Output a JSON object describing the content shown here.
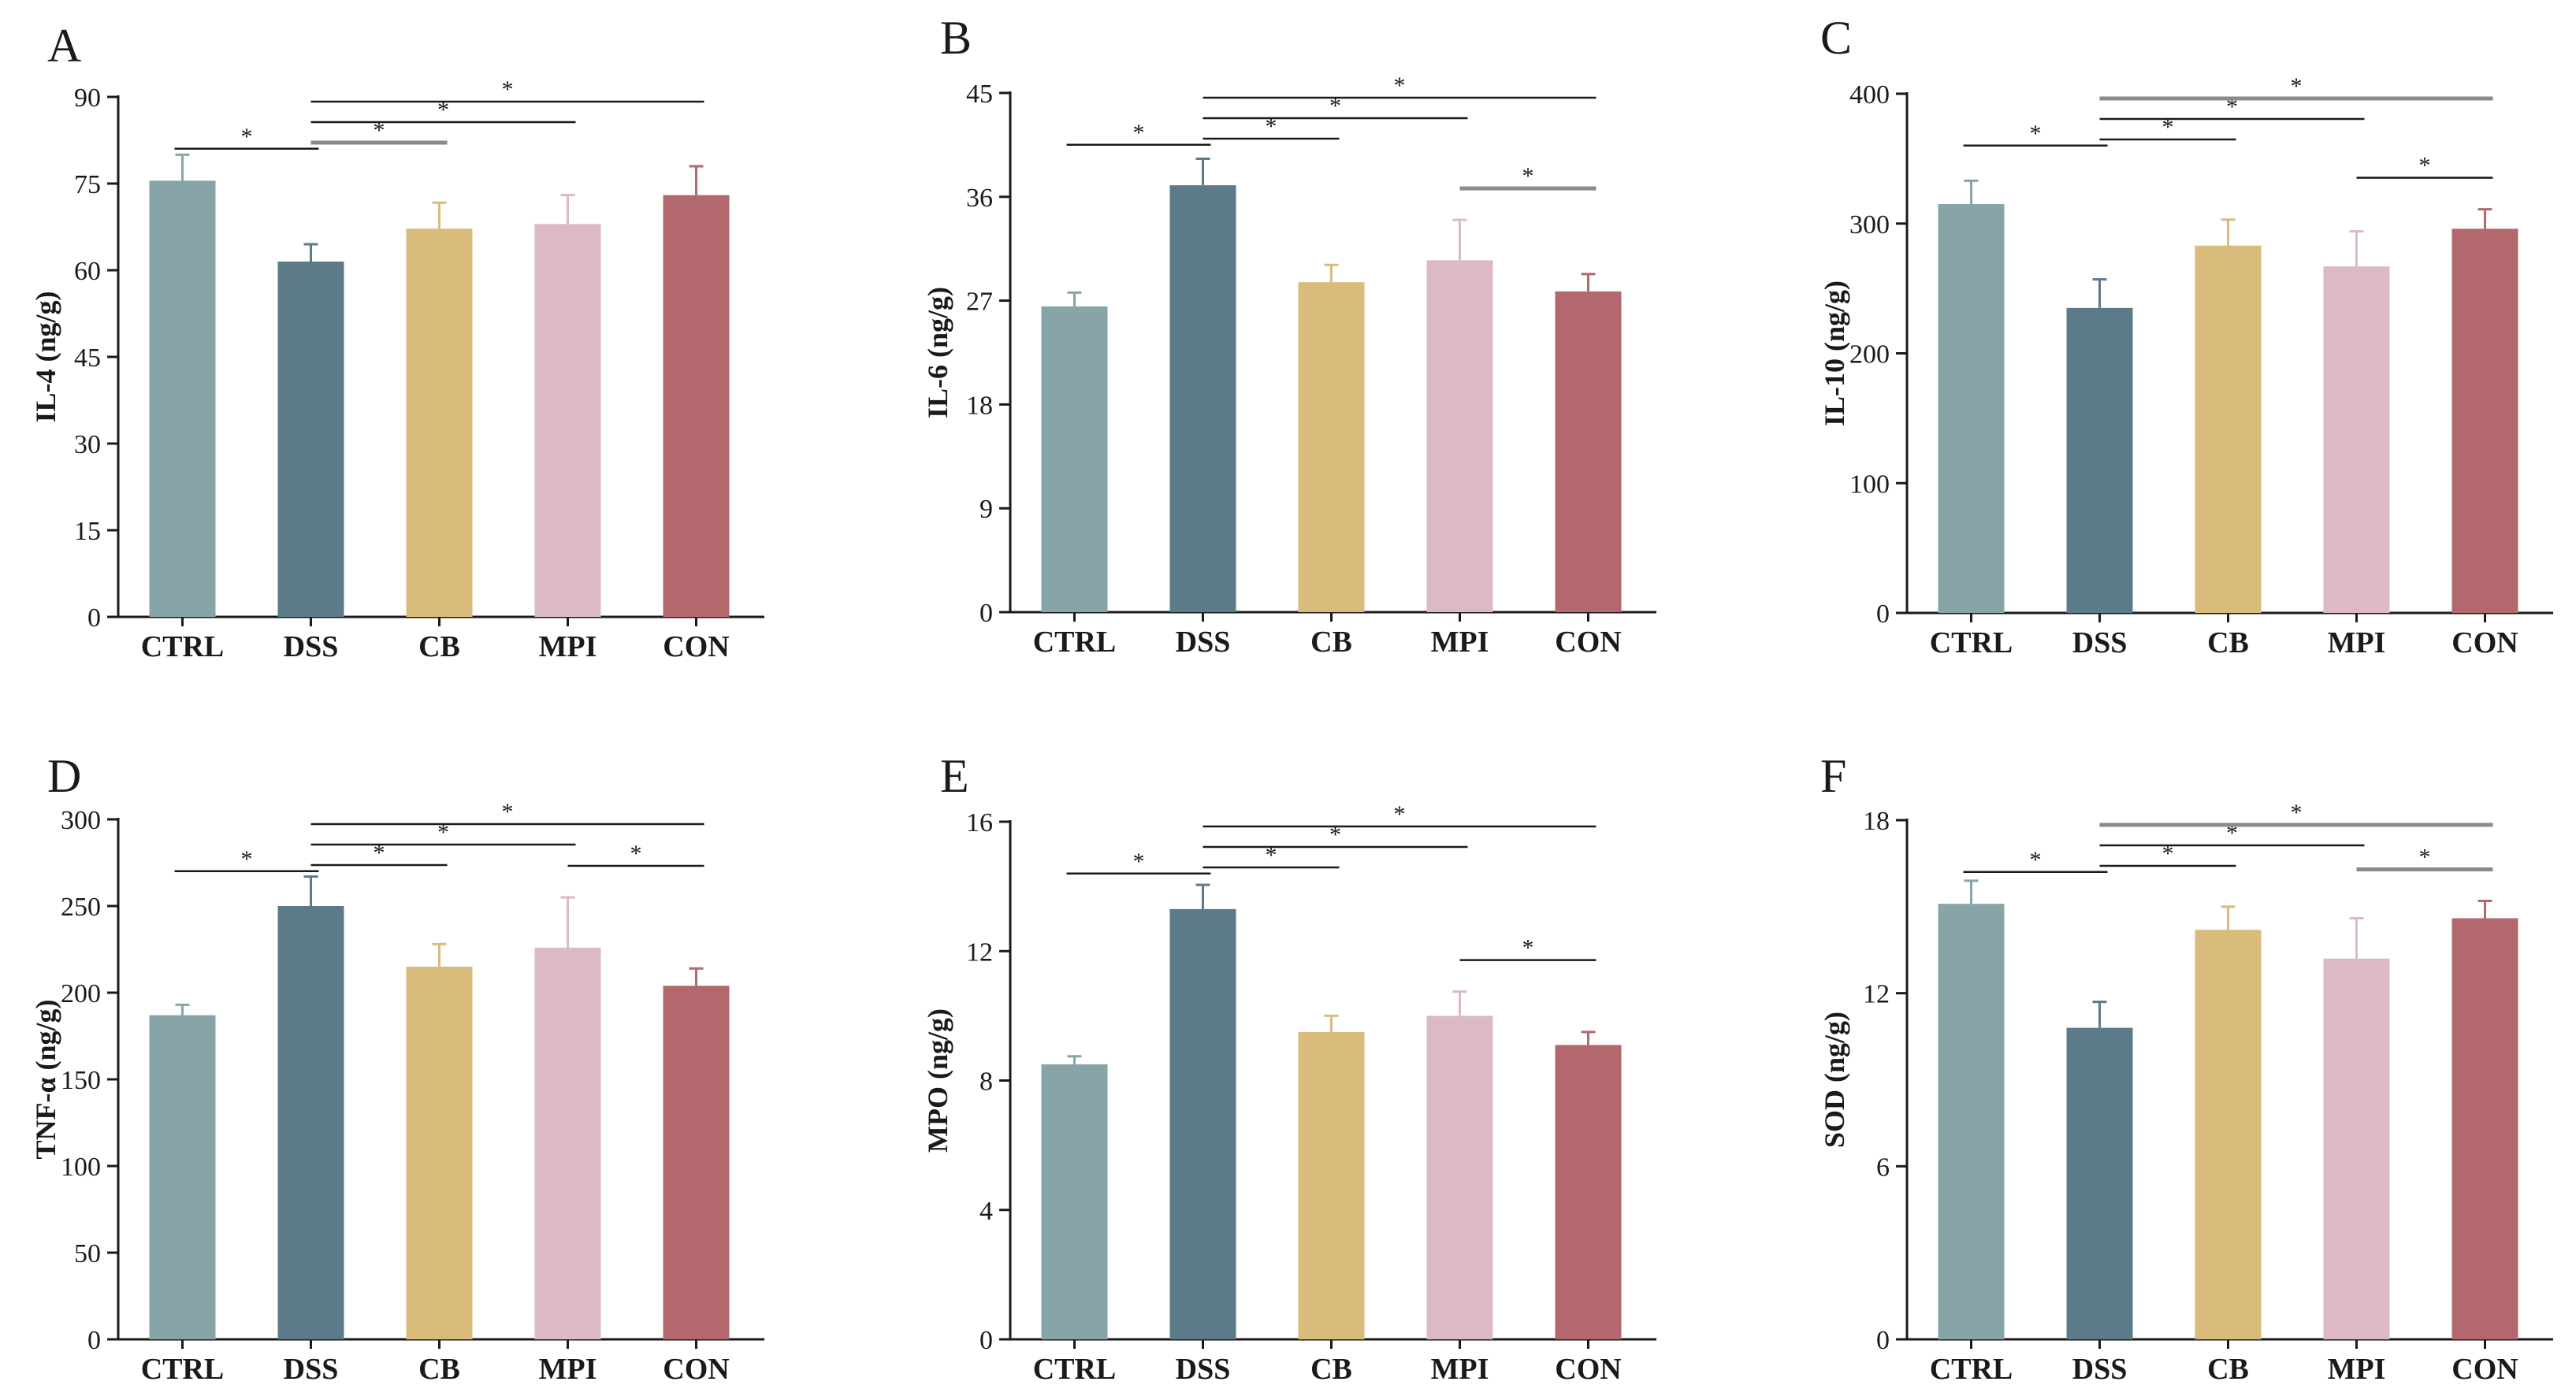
{
  "bar_colors": [
    "#87a4a8",
    "#5b7b89",
    "#d9bb7c",
    "#dcbac4",
    "#b3686e"
  ],
  "chart_data": [
    {
      "type": "bar",
      "panel": "A",
      "ylabel": "IL-4 (ng/g)",
      "categories": [
        "CTRL",
        "DSS",
        "CB",
        "MPI",
        "CON"
      ],
      "values": [
        75.5,
        61.5,
        67.2,
        68.0,
        73.0
      ],
      "errors": [
        4.5,
        3.0,
        4.5,
        5.0,
        5.0
      ],
      "ylim": [
        0,
        90
      ],
      "yticks": [
        "0",
        "15",
        "30",
        "45",
        "60",
        "75",
        "90"
      ],
      "significance": [
        {
          "from": "CTRL",
          "to": "DSS",
          "level": 0,
          "label": "*"
        },
        {
          "from": "DSS",
          "to": "CB",
          "level": 1,
          "label": "*",
          "color": "#8a8a8a"
        },
        {
          "from": "DSS",
          "to": "MPI",
          "level": 2,
          "label": "*"
        },
        {
          "from": "DSS",
          "to": "CON",
          "level": 3,
          "label": "*"
        }
      ]
    },
    {
      "type": "bar",
      "panel": "B",
      "ylabel": "IL-6 (ng/g)",
      "categories": [
        "CTRL",
        "DSS",
        "CB",
        "MPI",
        "CON"
      ],
      "values": [
        26.5,
        37.0,
        28.6,
        30.5,
        27.8
      ],
      "errors": [
        1.2,
        2.3,
        1.5,
        3.5,
        1.5
      ],
      "ylim": [
        0,
        45
      ],
      "yticks": [
        "0",
        "9",
        "18",
        "27",
        "36",
        "45"
      ],
      "significance": [
        {
          "from": "CTRL",
          "to": "DSS",
          "level": 0,
          "label": "*"
        },
        {
          "from": "DSS",
          "to": "CB",
          "level": 1,
          "label": "*"
        },
        {
          "from": "DSS",
          "to": "MPI",
          "level": 2,
          "label": "*"
        },
        {
          "from": "DSS",
          "to": "CON",
          "level": 3,
          "label": "*"
        },
        {
          "from": "MPI",
          "to": "CON",
          "level": 0.3,
          "label": "*",
          "color": "#8a8a8a"
        }
      ]
    },
    {
      "type": "bar",
      "panel": "C",
      "ylabel": "IL-10 (ng/g)",
      "categories": [
        "CTRL",
        "DSS",
        "CB",
        "MPI",
        "CON"
      ],
      "values": [
        315,
        235,
        283,
        267,
        296
      ],
      "errors": [
        18,
        22,
        20,
        27,
        15
      ],
      "ylim": [
        0,
        400
      ],
      "yticks": [
        "0",
        "100",
        "200",
        "300",
        "400"
      ],
      "significance": [
        {
          "from": "CTRL",
          "to": "DSS",
          "level": 0,
          "label": "*"
        },
        {
          "from": "DSS",
          "to": "CB",
          "level": 1,
          "label": "*"
        },
        {
          "from": "DSS",
          "to": "MPI",
          "level": 2,
          "label": "*"
        },
        {
          "from": "DSS",
          "to": "CON",
          "level": 3,
          "label": "*",
          "color": "#8a8a8a"
        },
        {
          "from": "MPI",
          "to": "CON",
          "level": 0.3,
          "label": "*"
        }
      ]
    },
    {
      "type": "bar",
      "panel": "D",
      "ylabel": "TNF-α (ng/g)",
      "categories": [
        "CTRL",
        "DSS",
        "CB",
        "MPI",
        "CON"
      ],
      "values": [
        187,
        250,
        215,
        226,
        204
      ],
      "errors": [
        6,
        17,
        13,
        29,
        10
      ],
      "ylim": [
        0,
        300
      ],
      "yticks": [
        "0",
        "50",
        "100",
        "150",
        "200",
        "250",
        "300"
      ],
      "significance": [
        {
          "from": "CTRL",
          "to": "DSS",
          "level": 0,
          "label": "*"
        },
        {
          "from": "DSS",
          "to": "CB",
          "level": 1,
          "label": "*"
        },
        {
          "from": "DSS",
          "to": "MPI",
          "level": 2,
          "label": "*"
        },
        {
          "from": "DSS",
          "to": "CON",
          "level": 3,
          "label": "*"
        },
        {
          "from": "MPI",
          "to": "CON",
          "level": 0.3,
          "label": "*"
        }
      ]
    },
    {
      "type": "bar",
      "panel": "E",
      "ylabel": "MPO (ng/g)",
      "categories": [
        "CTRL",
        "DSS",
        "CB",
        "MPI",
        "CON"
      ],
      "values": [
        8.5,
        13.3,
        9.5,
        10.0,
        9.1
      ],
      "errors": [
        0.25,
        0.75,
        0.5,
        0.75,
        0.4
      ],
      "ylim": [
        0,
        16
      ],
      "yticks": [
        "0",
        "4",
        "8",
        "12",
        "16"
      ],
      "significance": [
        {
          "from": "CTRL",
          "to": "DSS",
          "level": 0,
          "label": "*"
        },
        {
          "from": "DSS",
          "to": "CB",
          "level": 1,
          "label": "*"
        },
        {
          "from": "DSS",
          "to": "MPI",
          "level": 2,
          "label": "*"
        },
        {
          "from": "DSS",
          "to": "CON",
          "level": 3,
          "label": "*"
        },
        {
          "from": "MPI",
          "to": "CON",
          "level": 0.3,
          "label": "*"
        }
      ]
    },
    {
      "type": "bar",
      "panel": "F",
      "ylabel": "SOD (ng/g)",
      "categories": [
        "CTRL",
        "DSS",
        "CB",
        "MPI",
        "CON"
      ],
      "values": [
        15.1,
        10.8,
        14.2,
        13.2,
        14.6
      ],
      "errors": [
        0.8,
        0.9,
        0.8,
        1.4,
        0.6
      ],
      "ylim": [
        0,
        18
      ],
      "yticks": [
        "0",
        "6",
        "12",
        "18"
      ],
      "significance": [
        {
          "from": "CTRL",
          "to": "DSS",
          "level": 0,
          "label": "*"
        },
        {
          "from": "DSS",
          "to": "CB",
          "level": 1,
          "label": "*"
        },
        {
          "from": "DSS",
          "to": "MPI",
          "level": 2,
          "label": "*"
        },
        {
          "from": "DSS",
          "to": "CON",
          "level": 3,
          "label": "*",
          "color": "#8a8a8a"
        },
        {
          "from": "MPI",
          "to": "CON",
          "level": 0.3,
          "label": "*",
          "color": "#8a8a8a"
        }
      ]
    }
  ]
}
